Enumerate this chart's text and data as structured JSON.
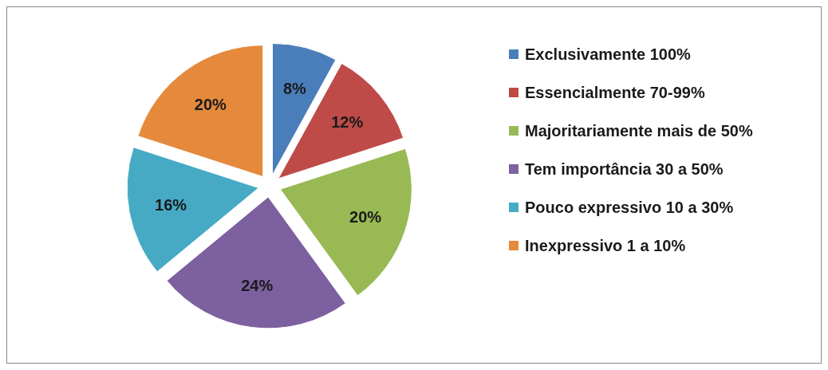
{
  "chart_data": {
    "type": "pie",
    "categories": [
      "Exclusivamente 100%",
      "Essencialmente 70-99%",
      "Majoritariamente mais de 50%",
      "Tem importância 30 a 50%",
      "Pouco expressivo 10 a 30%",
      "Inexpressivo 1 a 10%"
    ],
    "values": [
      8,
      12,
      20,
      24,
      16,
      20
    ],
    "colors": [
      "#4a7ebb",
      "#be4b48",
      "#98b954",
      "#7d60a0",
      "#46aac5",
      "#e58a3c"
    ],
    "value_labels": [
      "8%",
      "12%",
      "20%",
      "24%",
      "16%",
      "20%"
    ],
    "legend": "right"
  }
}
